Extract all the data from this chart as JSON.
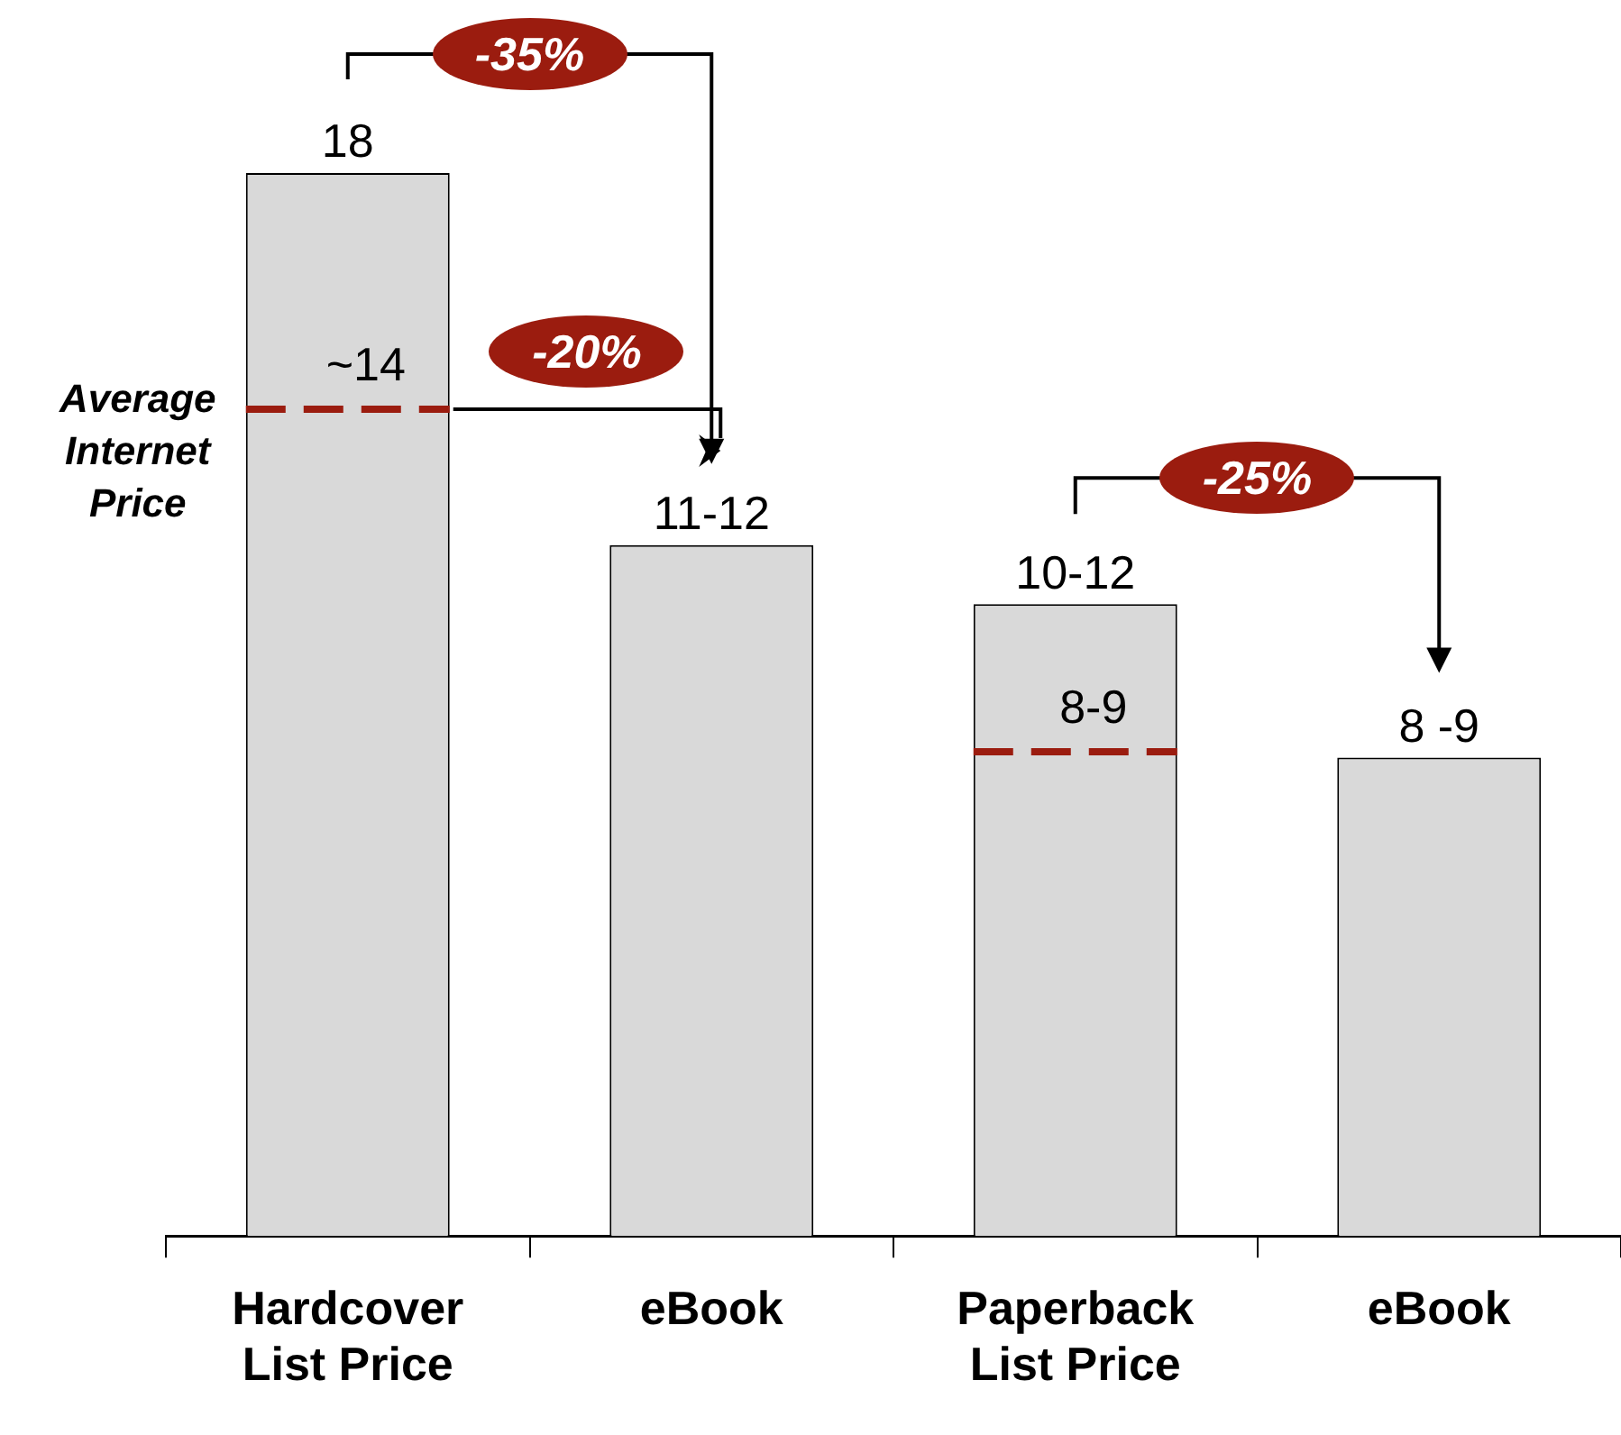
{
  "chart_data": {
    "type": "bar",
    "ylim": [
      0,
      18
    ],
    "tick_labels": "x",
    "categories": [
      "Hardcover List Price",
      "eBook",
      "Paperback List Price",
      "eBook"
    ],
    "values": [
      18,
      11.7,
      10.7,
      8.1
    ],
    "value_labels": [
      "18",
      "11-12",
      "10-12",
      "8 -9"
    ],
    "color": "#d9d9d9",
    "ref_lines": [
      {
        "axis": "y",
        "value": 14,
        "label": "~14",
        "color": "#9b1c0f",
        "line_style": "dashed"
      },
      {
        "axis": "y",
        "value": 8.2,
        "label": "8-9",
        "color": "#9b1c0f",
        "line_style": "dashed"
      }
    ],
    "annotations": [
      "Average Internet Price",
      "-35%",
      "-20%",
      "-25%"
    ],
    "grid": false
  }
}
